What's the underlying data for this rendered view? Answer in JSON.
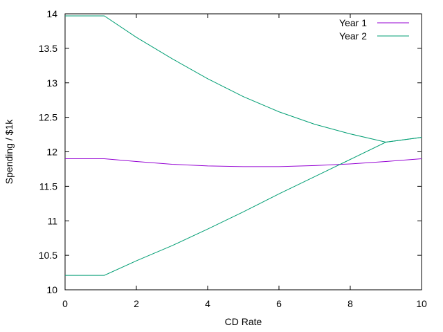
{
  "chart_data": {
    "type": "line",
    "title": "",
    "xlabel": "CD Rate",
    "ylabel": "Spending / $1k",
    "xlim": [
      0,
      10
    ],
    "ylim": [
      10,
      14
    ],
    "xticks": [
      0,
      2,
      4,
      6,
      8,
      10
    ],
    "yticks": [
      10,
      10.5,
      11,
      11.5,
      12,
      12.5,
      13,
      13.5,
      14
    ],
    "xtick_labels": [
      "0",
      "2",
      "4",
      "6",
      "8",
      "10"
    ],
    "ytick_labels": [
      "10",
      "10.5",
      "11",
      "11.5",
      "12",
      "12.5",
      "13",
      "13.5",
      "14"
    ],
    "grid": false,
    "legend_position": "top-right",
    "series": [
      {
        "name": "Year 1",
        "color": "#9400d3",
        "segments": [
          {
            "x": [
              0,
              1.1,
              2,
              3,
              4,
              5,
              6,
              7,
              8,
              9,
              10
            ],
            "y": [
              11.9,
              11.9,
              11.86,
              11.82,
              11.795,
              11.785,
              11.785,
              11.8,
              11.825,
              11.86,
              11.9
            ]
          }
        ]
      },
      {
        "name": "Year 2",
        "color": "#009e73",
        "segments": [
          {
            "x": [
              0,
              1.1,
              2,
              3,
              4,
              5,
              6,
              7,
              8,
              9,
              10
            ],
            "y": [
              13.97,
              13.97,
              13.66,
              13.35,
              13.06,
              12.8,
              12.58,
              12.4,
              12.26,
              12.14,
              12.21
            ]
          },
          {
            "x": [
              0,
              1.1,
              2,
              3,
              4,
              5,
              6,
              7,
              8,
              9,
              10
            ],
            "y": [
              10.21,
              10.21,
              10.42,
              10.64,
              10.88,
              11.13,
              11.39,
              11.64,
              11.89,
              12.14,
              12.21
            ]
          }
        ]
      }
    ]
  }
}
